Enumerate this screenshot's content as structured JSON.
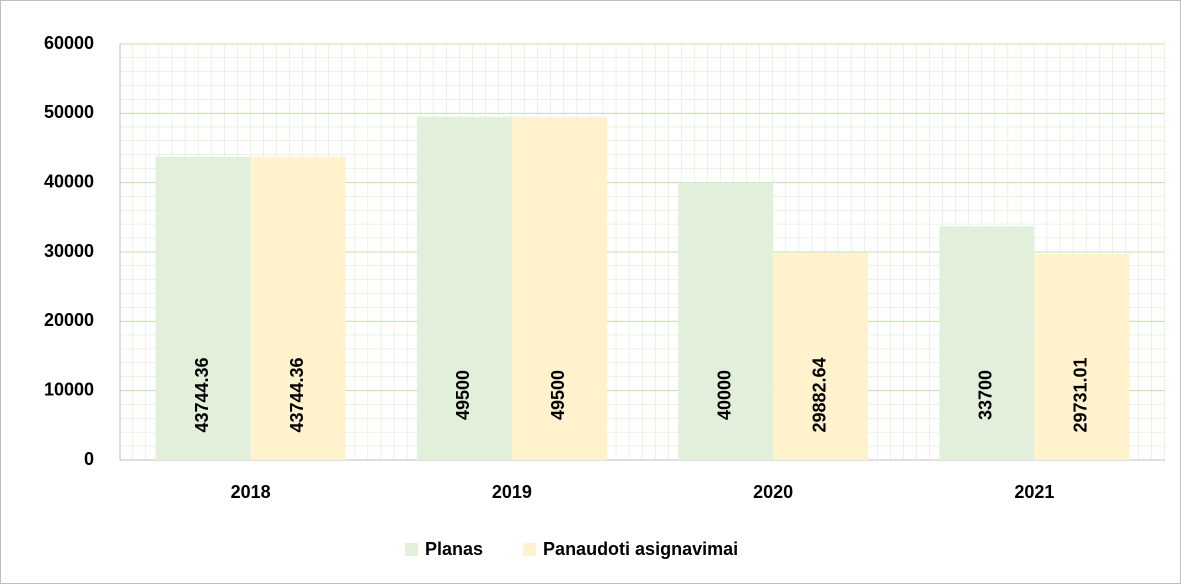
{
  "chart_data": {
    "type": "bar",
    "categories": [
      "2018",
      "2019",
      "2020",
      "2021"
    ],
    "series": [
      {
        "name": "Planas",
        "color": "#e2efda",
        "values": [
          43744.36,
          49500,
          40000,
          33700
        ]
      },
      {
        "name": "Panaudoti asignavimai",
        "color": "#fff2cc",
        "values": [
          43744.36,
          49500,
          29882.64,
          29731.01
        ]
      }
    ],
    "ylim": [
      0,
      60000
    ],
    "yticks": [
      0,
      10000,
      20000,
      30000,
      40000,
      50000,
      60000
    ],
    "grid": true,
    "legend": "bottom"
  }
}
